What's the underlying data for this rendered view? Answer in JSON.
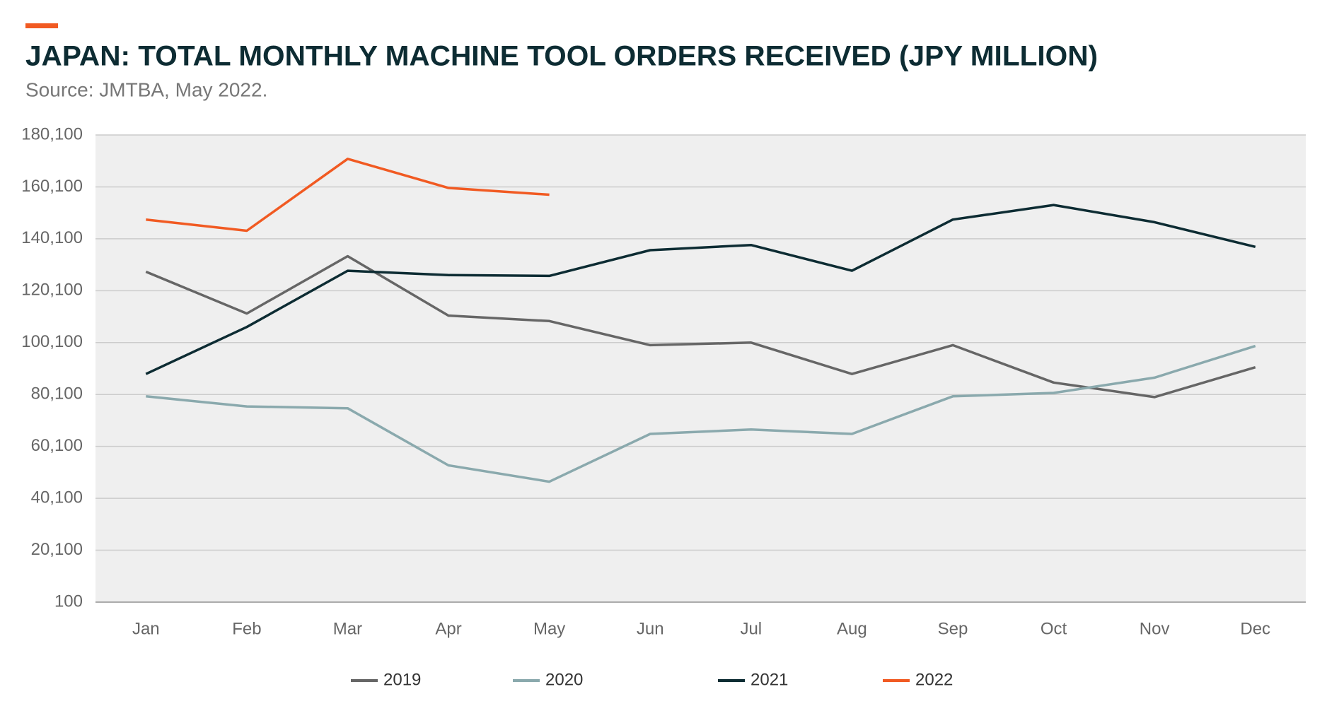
{
  "chart_data": {
    "type": "line",
    "title": "JAPAN: TOTAL MONTHLY MACHINE TOOL ORDERS RECEIVED (JPY MILLION)",
    "subtitle": "Source: JMTBA, May 2022.",
    "categories": [
      "Jan",
      "Feb",
      "Mar",
      "Apr",
      "May",
      "Jun",
      "Jul",
      "Aug",
      "Sep",
      "Oct",
      "Nov",
      "Dec"
    ],
    "series": [
      {
        "name": "2019",
        "color": "#666666",
        "values": [
          127400,
          111300,
          133400,
          110500,
          108400,
          99100,
          100100,
          88000,
          99100,
          84700,
          79100,
          90600
        ]
      },
      {
        "name": "2020",
        "color": "#8aa9ad",
        "values": [
          79400,
          75500,
          74800,
          52800,
          46500,
          64900,
          66600,
          64900,
          79400,
          80700,
          86600,
          98800
        ]
      },
      {
        "name": "2021",
        "color": "#0d2c33",
        "values": [
          88000,
          106100,
          127800,
          126100,
          125800,
          135700,
          137700,
          127800,
          147500,
          153100,
          146500,
          137000
        ]
      },
      {
        "name": "2022",
        "color": "#f15a22",
        "values": [
          147500,
          143200,
          170900,
          159700,
          157100,
          null,
          null,
          null,
          null,
          null,
          null,
          null
        ]
      }
    ],
    "ylim": [
      100,
      180100
    ],
    "yticks": [
      100,
      {
        "value": 20100,
        "label": "20,100"
      },
      {
        "value": 40100,
        "label": "40,100"
      },
      {
        "value": 60100,
        "label": "60,100"
      },
      {
        "value": 80100,
        "label": "80,100"
      },
      {
        "value": 100100,
        "label": "100,100"
      },
      {
        "value": 120100,
        "label": "120,100"
      },
      {
        "value": 140100,
        "label": "140,100"
      },
      {
        "value": 160100,
        "label": "160,100"
      },
      {
        "value": 180100,
        "label": "180,100"
      }
    ],
    "grid": true,
    "legend": "bottom"
  }
}
